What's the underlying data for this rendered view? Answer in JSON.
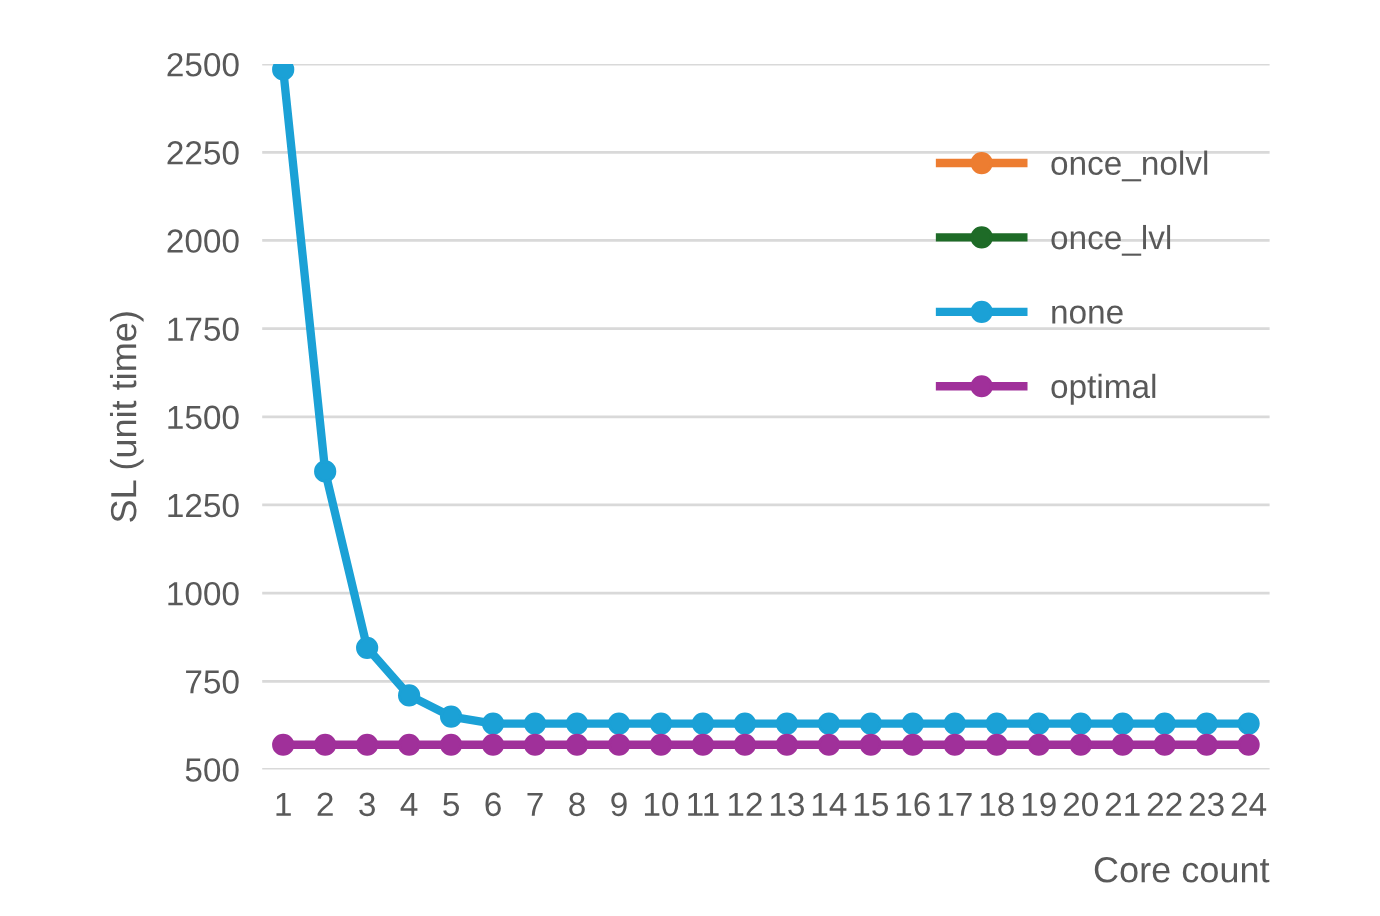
{
  "chart_data": {
    "type": "line",
    "xlabel": "Core count",
    "ylabel": "SL (unit time)",
    "categories": [
      "1",
      "2",
      "3",
      "4",
      "5",
      "6",
      "7",
      "8",
      "9",
      "10",
      "11",
      "12",
      "13",
      "14",
      "15",
      "16",
      "17",
      "18",
      "19",
      "20",
      "21",
      "22",
      "23",
      "24"
    ],
    "series": [
      {
        "name": "once_nolvl",
        "color": "#ed7d31",
        "values": [
          null,
          null,
          null,
          null,
          null,
          null,
          null,
          null,
          null,
          null,
          null,
          null,
          null,
          null,
          null,
          null,
          null,
          null,
          null,
          null,
          null,
          null,
          null,
          null
        ]
      },
      {
        "name": "once_lvl",
        "color": "#1e6b27",
        "values": [
          null,
          null,
          null,
          null,
          null,
          null,
          null,
          null,
          null,
          null,
          null,
          null,
          null,
          null,
          null,
          null,
          null,
          null,
          null,
          null,
          null,
          null,
          null,
          null
        ]
      },
      {
        "name": "none",
        "color": "#1ba1d6",
        "values": [
          2485,
          1345,
          845,
          710,
          650,
          630,
          630,
          630,
          630,
          630,
          630,
          630,
          630,
          630,
          630,
          630,
          630,
          630,
          630,
          630,
          630,
          630,
          630,
          630
        ]
      },
      {
        "name": "optimal",
        "color": "#a0309a",
        "values": [
          570,
          570,
          570,
          570,
          570,
          570,
          570,
          570,
          570,
          570,
          570,
          570,
          570,
          570,
          570,
          570,
          570,
          570,
          570,
          570,
          570,
          570,
          570,
          570
        ]
      }
    ],
    "ylim": [
      500,
      2500
    ],
    "yticks": [
      500,
      750,
      1000,
      1250,
      1500,
      1750,
      2000,
      2250,
      2500
    ],
    "grid": "y",
    "legend": "top right",
    "marker": "circle",
    "line_style": "solid"
  }
}
